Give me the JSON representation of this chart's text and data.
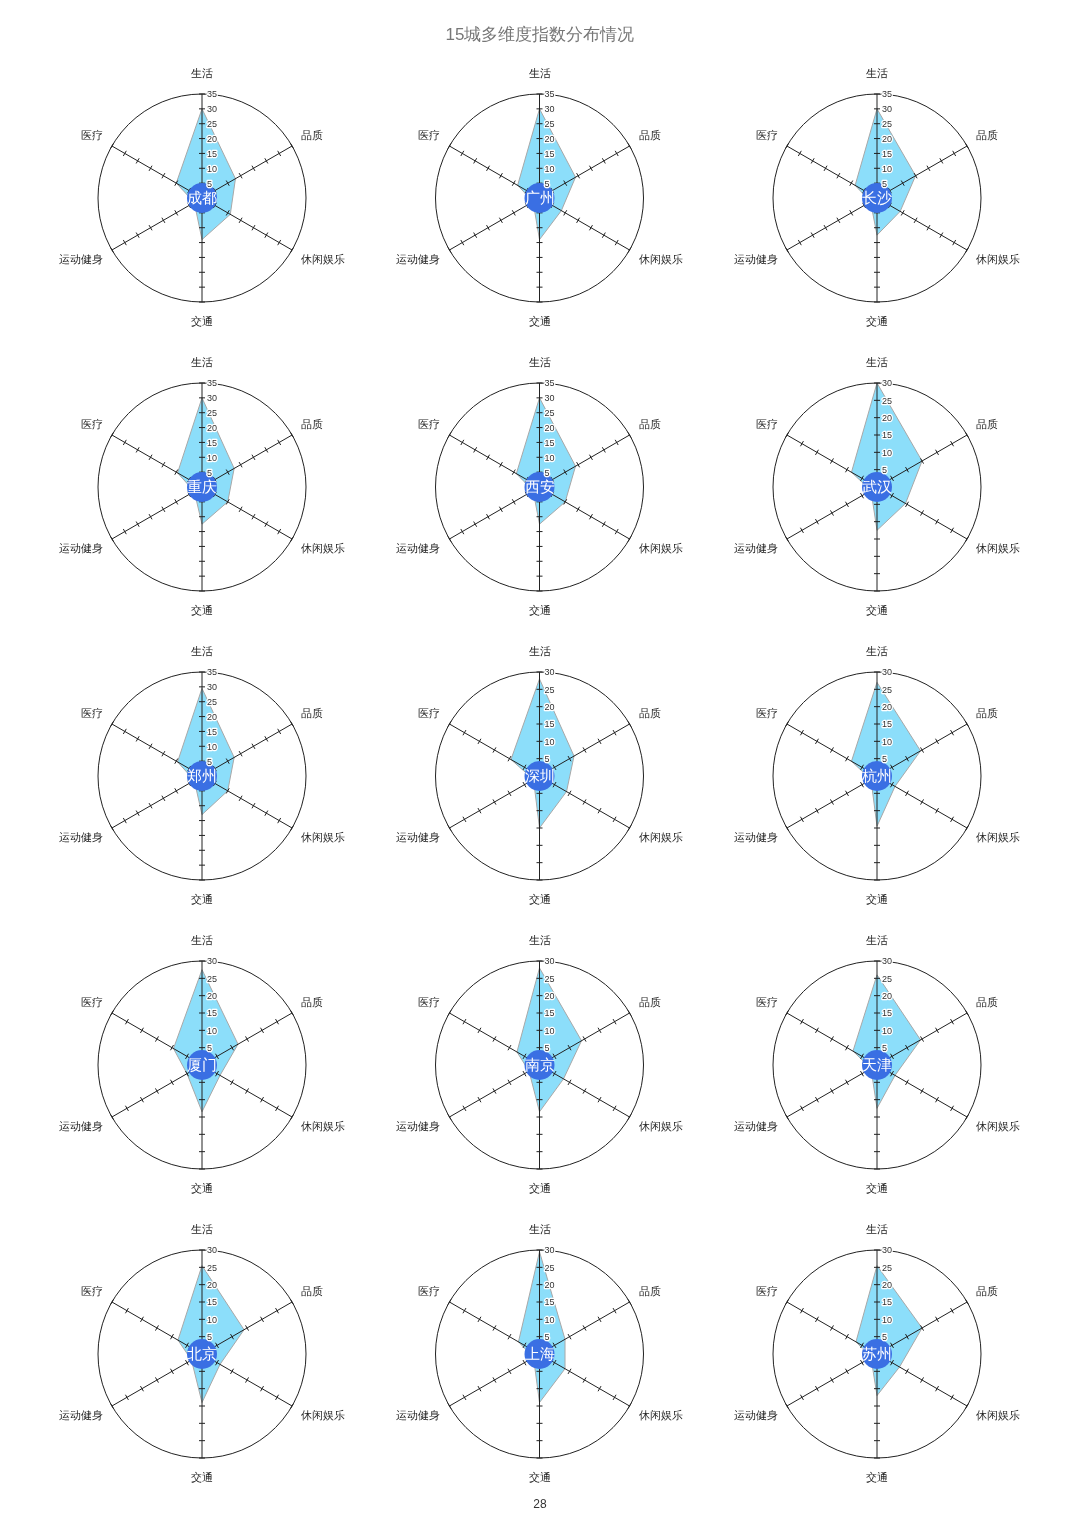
{
  "chart_data": [
    {
      "type": "radar",
      "title": "成都",
      "annotations": [
        "15城多维度指数分布情况",
        "28"
      ],
      "categories": [
        "生活",
        "品质",
        "休闲娱乐",
        "交通",
        "运动健身",
        "医疗"
      ],
      "ylim": [
        0,
        35
      ],
      "yticks": [
        5,
        10,
        15,
        20,
        25,
        30,
        35
      ],
      "grid": true,
      "series": [
        {
          "color": "#86dcfa",
          "values": [
            30,
            13,
            11,
            14,
            3,
            10
          ]
        }
      ]
    },
    {
      "type": "radar",
      "title": "广州",
      "categories": [
        "生活",
        "品质",
        "休闲娱乐",
        "交通",
        "运动健身",
        "医疗"
      ],
      "ylim": [
        0,
        35
      ],
      "yticks": [
        5,
        10,
        15,
        20,
        25,
        30,
        35
      ],
      "grid": true,
      "series": [
        {
          "color": "#86dcfa",
          "values": [
            30,
            14,
            8.5,
            14,
            2.5,
            8.5
          ]
        }
      ]
    },
    {
      "type": "radar",
      "title": "长沙",
      "categories": [
        "生活",
        "品质",
        "休闲娱乐",
        "交通",
        "运动健身",
        "医疗"
      ],
      "ylim": [
        0,
        35
      ],
      "yticks": [
        5,
        10,
        15,
        20,
        25,
        30,
        35
      ],
      "grid": true,
      "series": [
        {
          "color": "#86dcfa",
          "values": [
            30,
            15,
            9,
            12.5,
            2.5,
            8.5
          ]
        }
      ]
    },
    {
      "type": "radar",
      "title": "重庆",
      "categories": [
        "生活",
        "品质",
        "休闲娱乐",
        "交通",
        "运动健身",
        "医疗"
      ],
      "ylim": [
        0,
        35
      ],
      "yticks": [
        5,
        10,
        15,
        20,
        25,
        30,
        35
      ],
      "grid": true,
      "series": [
        {
          "color": "#86dcfa",
          "values": [
            30,
            12.5,
            10,
            12.5,
            3,
            9.5
          ]
        }
      ]
    },
    {
      "type": "radar",
      "title": "西安",
      "categories": [
        "生活",
        "品质",
        "休闲娱乐",
        "交通",
        "运动健身",
        "医疗"
      ],
      "ylim": [
        0,
        35
      ],
      "yticks": [
        5,
        10,
        15,
        20,
        25,
        30,
        35
      ],
      "grid": true,
      "series": [
        {
          "color": "#86dcfa",
          "values": [
            30,
            14,
            10,
            12.5,
            2.5,
            9
          ]
        }
      ]
    },
    {
      "type": "radar",
      "title": "武汉",
      "categories": [
        "生活",
        "品质",
        "休闲娱乐",
        "交通",
        "运动健身",
        "医疗"
      ],
      "ylim": [
        0,
        30
      ],
      "yticks": [
        5,
        10,
        15,
        20,
        25,
        30
      ],
      "grid": true,
      "series": [
        {
          "color": "#86dcfa",
          "values": [
            30,
            15,
            9.5,
            12.5,
            2,
            8.5
          ]
        }
      ]
    },
    {
      "type": "radar",
      "title": "郑州",
      "categories": [
        "生活",
        "品质",
        "休闲娱乐",
        "交通",
        "运动健身",
        "医疗"
      ],
      "ylim": [
        0,
        35
      ],
      "yticks": [
        5,
        10,
        15,
        20,
        25,
        30,
        35
      ],
      "grid": true,
      "series": [
        {
          "color": "#86dcfa",
          "values": [
            29.5,
            12.5,
            10,
            13,
            3,
            9.5
          ]
        }
      ]
    },
    {
      "type": "radar",
      "title": "深圳",
      "categories": [
        "生活",
        "品质",
        "休闲娱乐",
        "交通",
        "运动健身",
        "医疗"
      ],
      "ylim": [
        0,
        30
      ],
      "yticks": [
        5,
        10,
        15,
        20,
        25,
        30
      ],
      "grid": true,
      "series": [
        {
          "color": "#86dcfa",
          "values": [
            28,
            11.5,
            9,
            15,
            2,
            9.5
          ]
        }
      ]
    },
    {
      "type": "radar",
      "title": "杭州",
      "categories": [
        "生活",
        "品质",
        "休闲娱乐",
        "交通",
        "运动健身",
        "医疗"
      ],
      "ylim": [
        0,
        30
      ],
      "yticks": [
        5,
        10,
        15,
        20,
        25,
        30
      ],
      "grid": true,
      "series": [
        {
          "color": "#86dcfa",
          "values": [
            27,
            14.5,
            6,
            14.5,
            2,
            8.5
          ]
        }
      ]
    },
    {
      "type": "radar",
      "title": "厦门",
      "categories": [
        "生活",
        "品质",
        "休闲娱乐",
        "交通",
        "运动健身",
        "医疗"
      ],
      "ylim": [
        0,
        30
      ],
      "yticks": [
        5,
        10,
        15,
        20,
        25,
        30
      ],
      "grid": true,
      "series": [
        {
          "color": "#86dcfa",
          "values": [
            27.5,
            12,
            6,
            13.5,
            5,
            9.5
          ]
        }
      ]
    },
    {
      "type": "radar",
      "title": "南京",
      "categories": [
        "生活",
        "品质",
        "休闲娱乐",
        "交通",
        "运动健身",
        "医疗"
      ],
      "ylim": [
        0,
        30
      ],
      "yticks": [
        5,
        10,
        15,
        20,
        25,
        30
      ],
      "grid": true,
      "series": [
        {
          "color": "#86dcfa",
          "values": [
            28,
            14,
            8,
            13.5,
            3.5,
            7.5
          ]
        }
      ]
    },
    {
      "type": "radar",
      "title": "天津",
      "categories": [
        "生活",
        "品质",
        "休闲娱乐",
        "交通",
        "运动健身",
        "医疗"
      ],
      "ylim": [
        0,
        30
      ],
      "yticks": [
        5,
        10,
        15,
        20,
        25,
        30
      ],
      "grid": true,
      "series": [
        {
          "color": "#86dcfa",
          "values": [
            26,
            14.5,
            6,
            12.5,
            2,
            8
          ]
        }
      ]
    },
    {
      "type": "radar",
      "title": "北京",
      "categories": [
        "生活",
        "品质",
        "休闲娱乐",
        "交通",
        "运动健身",
        "医疗"
      ],
      "ylim": [
        0,
        30
      ],
      "yticks": [
        5,
        10,
        15,
        20,
        25,
        30
      ],
      "grid": true,
      "series": [
        {
          "color": "#86dcfa",
          "values": [
            25.5,
            14,
            6,
            14,
            3.5,
            8
          ]
        }
      ]
    },
    {
      "type": "radar",
      "title": "上海",
      "categories": [
        "生活",
        "品质",
        "休闲娱乐",
        "交通",
        "运动健身",
        "医疗"
      ],
      "ylim": [
        0,
        30
      ],
      "yticks": [
        5,
        10,
        15,
        20,
        25,
        30
      ],
      "grid": true,
      "series": [
        {
          "color": "#86dcfa",
          "values": [
            29.5,
            8.5,
            8.5,
            14,
            2,
            7
          ]
        }
      ]
    },
    {
      "type": "radar",
      "title": "苏州",
      "categories": [
        "生活",
        "品质",
        "休闲娱乐",
        "交通",
        "运动健身",
        "医疗"
      ],
      "ylim": [
        0,
        30
      ],
      "yticks": [
        5,
        10,
        15,
        20,
        25,
        30
      ],
      "grid": true,
      "series": [
        {
          "color": "#86dcfa",
          "values": [
            25.5,
            15,
            7.5,
            12,
            2,
            7
          ]
        }
      ]
    }
  ]
}
